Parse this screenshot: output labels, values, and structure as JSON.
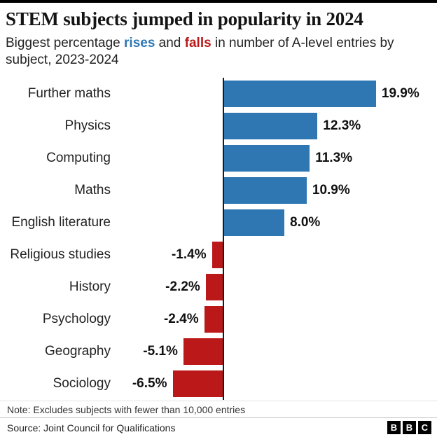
{
  "title": "STEM subjects jumped in popularity in 2024",
  "subtitle": {
    "parts": [
      "Biggest percentage ",
      "rises",
      " and ",
      "falls",
      " in number of A-level entries by subject, 2023-2024"
    ]
  },
  "colors": {
    "rise_blue": "#2e77b3",
    "fall_red": "#bb1919",
    "axis": "#1a1a1a"
  },
  "chart_data": {
    "type": "bar",
    "orientation": "horizontal",
    "title": "STEM subjects jumped in popularity in 2024",
    "subtitle": "Biggest percentage rises and falls in number of A-level entries by subject, 2023-2024",
    "categories": [
      "Further maths",
      "Physics",
      "Computing",
      "Maths",
      "English literature",
      "Religious studies",
      "History",
      "Psychology",
      "Geography",
      "Sociology"
    ],
    "values": [
      19.9,
      12.3,
      11.3,
      10.9,
      8.0,
      -1.4,
      -2.2,
      -2.4,
      -5.1,
      -6.5
    ],
    "value_labels": [
      "19.9%",
      "12.3%",
      "11.3%",
      "10.9%",
      "8.0%",
      "-1.4%",
      "-2.2%",
      "-2.4%",
      "-5.1%",
      "-6.5%"
    ],
    "unit": "%",
    "xlim": [
      -8,
      22
    ],
    "positive_color": "#2e77b3",
    "negative_color": "#bb1919",
    "grid": false,
    "legend": "none",
    "xlabel": "",
    "ylabel": ""
  },
  "note": "Note: Excludes subjects with fewer than 10,000 entries",
  "source": "Source: Joint Council for Qualifications",
  "logo": {
    "letters": [
      "B",
      "B",
      "C"
    ]
  }
}
